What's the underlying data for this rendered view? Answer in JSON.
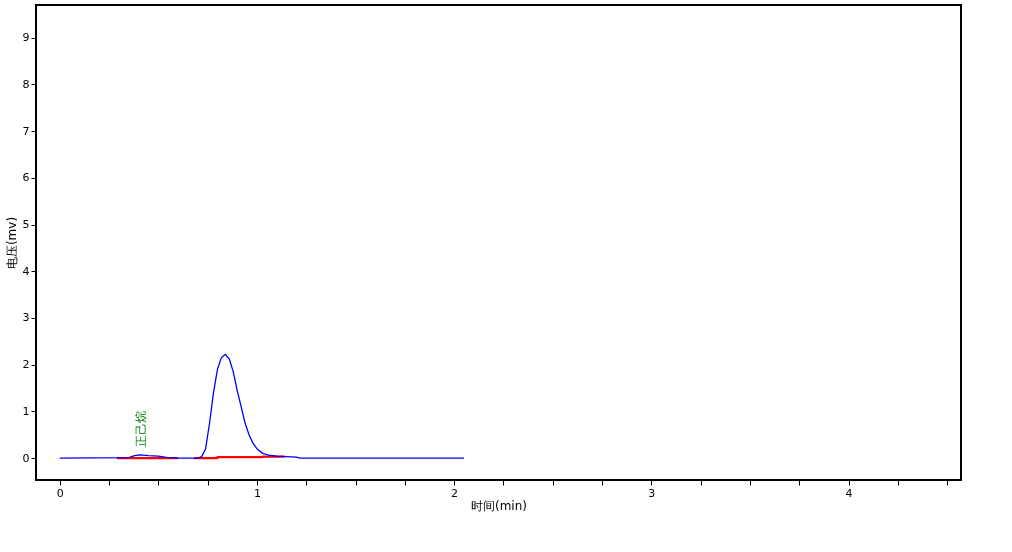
{
  "chart_data": {
    "type": "line",
    "xlabel": "时间(min)",
    "ylabel": "电压(mv)",
    "xlim": [
      -0.12,
      4.57
    ],
    "ylim": [
      -0.47,
      9.7
    ],
    "xticks": [
      0,
      {
        "value": 0.25,
        "label": null
      },
      {
        "value": 0.5,
        "label": null
      },
      {
        "value": 0.75,
        "label": null
      },
      1,
      {
        "value": 1.25,
        "label": null
      },
      {
        "value": 1.5,
        "label": null
      },
      {
        "value": 1.75,
        "label": null
      },
      2,
      {
        "value": 2.25,
        "label": null
      },
      {
        "value": 2.5,
        "label": null
      },
      {
        "value": 2.75,
        "label": null
      },
      3,
      {
        "value": 3.25,
        "label": null
      },
      {
        "value": 3.5,
        "label": null
      },
      {
        "value": 3.75,
        "label": null
      },
      4,
      {
        "value": 4.25,
        "label": null
      },
      {
        "value": 4.5,
        "label": null
      }
    ],
    "yticks": [
      0,
      1,
      2,
      3,
      4,
      5,
      6,
      7,
      8,
      9
    ],
    "grid": false,
    "marker": "none",
    "line_style": "solid",
    "series": [
      {
        "color": "#0000ff",
        "x": [
          0,
          0.35,
          0.38,
          0.41,
          0.45,
          0.5,
          0.55,
          0.6,
          0.7,
          0.72,
          0.74,
          0.76,
          0.78,
          0.8,
          0.82,
          0.84,
          0.86,
          0.88,
          0.9,
          0.92,
          0.94,
          0.96,
          0.98,
          1.0,
          1.03,
          1.06,
          1.1,
          1.2,
          1.22,
          2.05
        ],
        "values": [
          0,
          0.01,
          0.05,
          0.07,
          0.05,
          0.04,
          0.01,
          0,
          0,
          0.03,
          0.2,
          0.75,
          1.4,
          1.9,
          2.15,
          2.22,
          2.12,
          1.85,
          1.45,
          1.1,
          0.75,
          0.5,
          0.32,
          0.2,
          0.1,
          0.06,
          0.04,
          0.02,
          0,
          0
        ]
      },
      {
        "color": "#ff0000",
        "x": [
          0.29,
          0.6,
          0.64,
          0.68,
          0.8,
          0.8,
          1.03,
          1.03,
          1.14
        ],
        "values": [
          0,
          0,
          null,
          0,
          0,
          0.02,
          0.02,
          0.03,
          0.03
        ]
      }
    ],
    "annotations": [
      {
        "text": "正己烷",
        "x": 0.41,
        "y": 0.07
      }
    ]
  }
}
